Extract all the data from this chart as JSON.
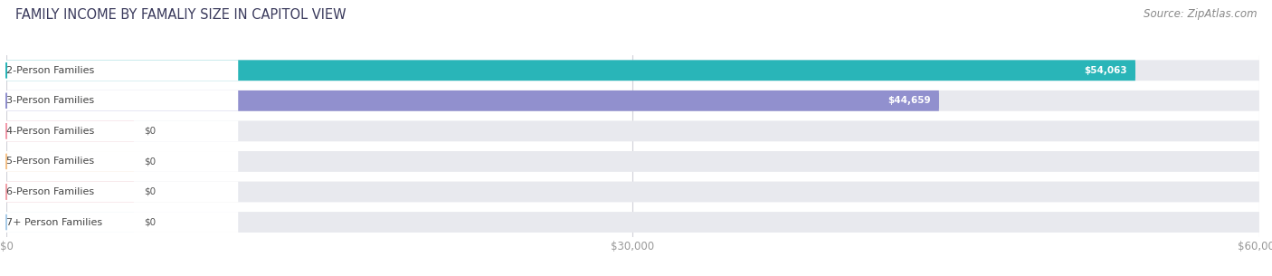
{
  "title": "FAMILY INCOME BY FAMALIY SIZE IN CAPITOL VIEW",
  "source": "Source: ZipAtlas.com",
  "categories": [
    "2-Person Families",
    "3-Person Families",
    "4-Person Families",
    "5-Person Families",
    "6-Person Families",
    "7+ Person Families"
  ],
  "values": [
    54063,
    44659,
    0,
    0,
    0,
    0
  ],
  "value_labels": [
    "$54,063",
    "$44,659",
    "$0",
    "$0",
    "$0",
    "$0"
  ],
  "bar_colors": [
    "#29b5b8",
    "#9190ce",
    "#f299aa",
    "#f5c28a",
    "#f0a0a8",
    "#a8cce8"
  ],
  "xmax": 60000,
  "xticks": [
    0,
    30000,
    60000
  ],
  "xticklabels": [
    "$0",
    "$30,000",
    "$60,000"
  ],
  "bg_color": "#ffffff",
  "bar_bg_color": "#e8e9ee",
  "title_fontsize": 10.5,
  "source_fontsize": 8.5,
  "label_fontsize": 8,
  "value_fontsize": 7.5
}
